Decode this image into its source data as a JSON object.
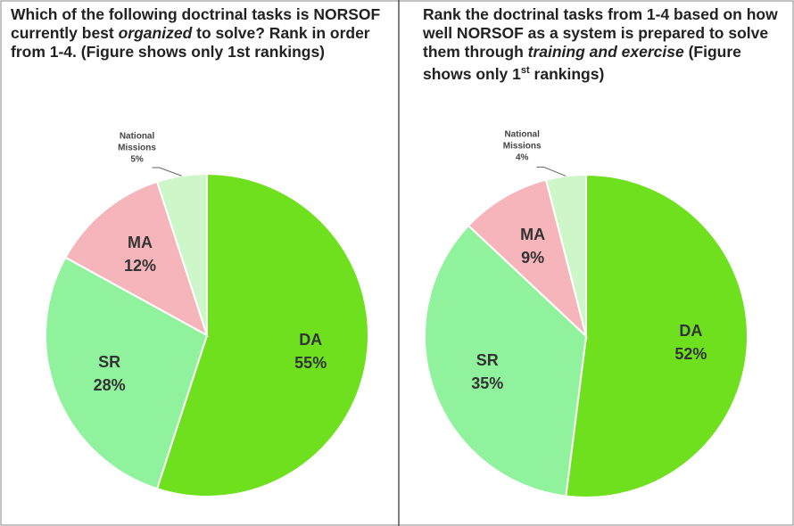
{
  "chart_data": [
    {
      "type": "pie",
      "title": [
        "Which of the following doctrinal tasks is NORSOF currently best ",
        "organized",
        " to solve? Rank in order from 1-4.  (Figure shows only 1st rankings)"
      ],
      "categories": [
        "DA",
        "SR",
        "MA",
        "National Missions"
      ],
      "values": [
        55,
        28,
        12,
        5
      ],
      "value_labels": [
        "55%",
        "28%",
        "12%",
        "5%"
      ],
      "colors": [
        "#6ee01e",
        "#90f29c",
        "#f5b5ba",
        "#cdf6c9"
      ]
    },
    {
      "type": "pie",
      "title": [
        "Rank the doctrinal tasks from 1-4 based on how well NORSOF as a system is prepared to solve them through ",
        "training and exercise",
        " (Figure shows only 1",
        "st",
        " rankings)"
      ],
      "categories": [
        "DA",
        "SR",
        "MA",
        "National Missions"
      ],
      "values": [
        52,
        35,
        9,
        4
      ],
      "value_labels": [
        "52%",
        "35%",
        "9%",
        "4%"
      ],
      "colors": [
        "#6ee01e",
        "#90f29c",
        "#f5b5ba",
        "#cdf6c9"
      ]
    }
  ]
}
